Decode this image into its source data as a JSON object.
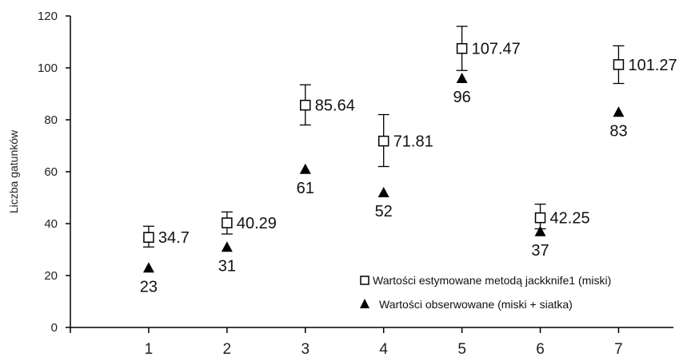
{
  "chart_data": {
    "type": "scatter",
    "ylabel": "Liczba gatunków",
    "xlabel": "",
    "title": "",
    "x": [
      1,
      2,
      3,
      4,
      5,
      6,
      7
    ],
    "xlim": [
      0,
      7.7
    ],
    "ylim": [
      0,
      120
    ],
    "yticks": [
      0,
      20,
      40,
      60,
      80,
      100,
      120
    ],
    "xticks": [
      1,
      2,
      3,
      4,
      5,
      6,
      7
    ],
    "grid": false,
    "legend_position": "bottom-right",
    "series": [
      {
        "name": "Wartości estymowane metodą jackknife1 (miski)",
        "marker": "open-square",
        "color": "#000000",
        "values": [
          34.7,
          40.29,
          85.64,
          71.81,
          107.47,
          42.25,
          101.27
        ],
        "error_low": [
          31,
          36,
          78,
          62,
          99,
          38,
          94
        ],
        "error_high": [
          39,
          44.5,
          93.5,
          82,
          116,
          47.5,
          108.5
        ],
        "labels": [
          "34.7",
          "40.29",
          "85.64",
          "71.81",
          "107.47",
          "42.25",
          "101.27"
        ]
      },
      {
        "name": "Wartości obserwowane (miski + siatka)",
        "marker": "filled-triangle",
        "color": "#000000",
        "values": [
          23,
          31,
          61,
          52,
          96,
          37,
          83
        ],
        "labels": [
          "23",
          "31",
          "61",
          "52",
          "96",
          "37",
          "83"
        ]
      }
    ]
  }
}
